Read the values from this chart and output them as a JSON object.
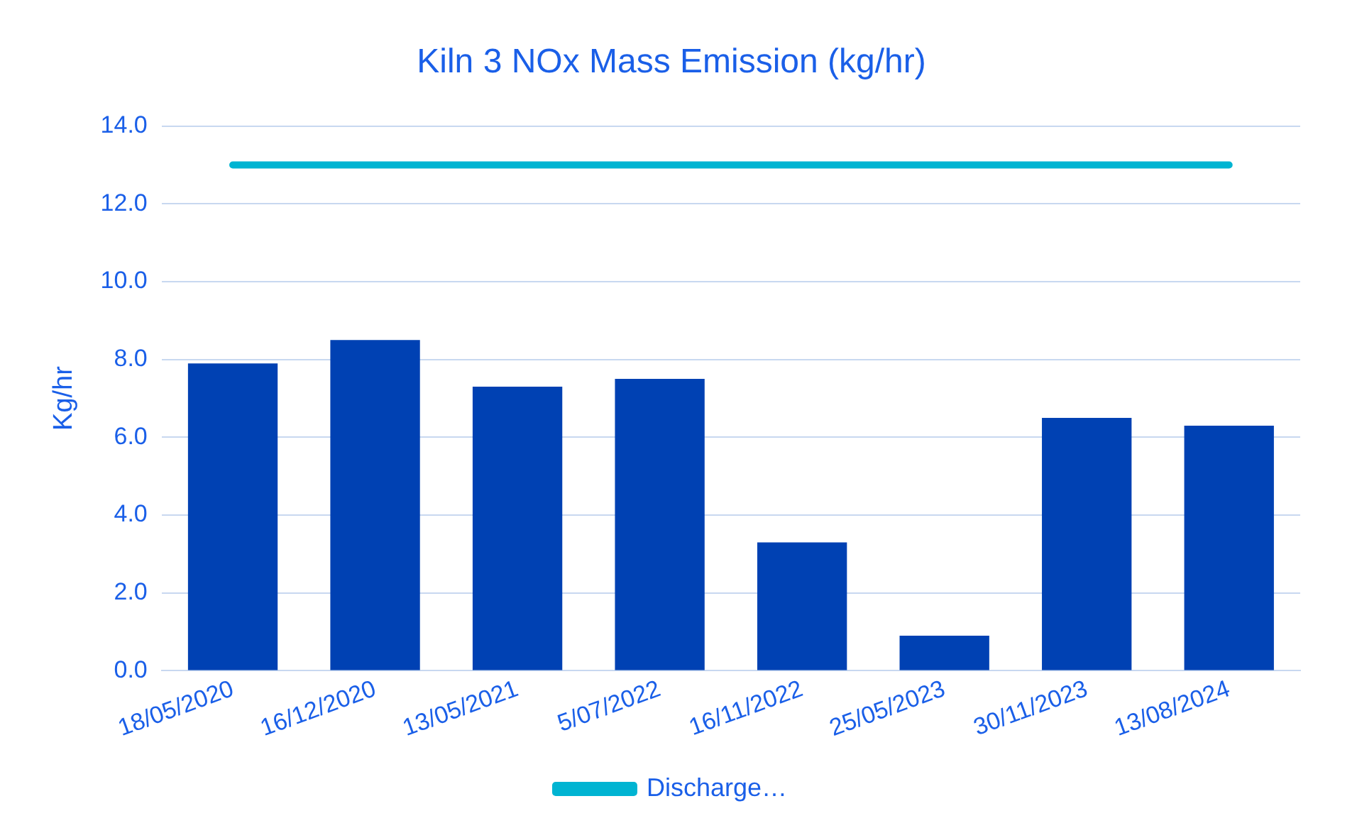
{
  "chart_data": {
    "type": "bar",
    "title": "Kiln 3 NOx Mass Emission (kg/hr)",
    "ylabel": "Kg/hr",
    "categories": [
      "18/05/2020",
      "16/12/2020",
      "13/05/2021",
      "5/07/2022",
      "16/11/2022",
      "25/05/2023",
      "30/11/2023",
      "13/08/2024"
    ],
    "series": [
      {
        "color": "#0041b3",
        "values": [
          7.9,
          8.5,
          7.3,
          7.5,
          3.3,
          0.9,
          6.5,
          6.3
        ]
      },
      {
        "type": "line",
        "name": "Discharge…",
        "color": "#00b4d2",
        "values": [
          13.0,
          13.0,
          13.0,
          13.0,
          13.0,
          13.0,
          13.0,
          13.0
        ]
      }
    ],
    "ylim": [
      0,
      14
    ],
    "yticks": [
      {
        "value": 0,
        "label": "0.0"
      },
      {
        "value": 2,
        "label": "2.0"
      },
      {
        "value": 4,
        "label": "4.0"
      },
      {
        "value": 6,
        "label": "6.0"
      },
      {
        "value": 8,
        "label": "8.0"
      },
      {
        "value": 10,
        "label": "10.0"
      },
      {
        "value": 12,
        "label": "12.0"
      },
      {
        "value": 14,
        "label": "14.0"
      }
    ],
    "grid": "y",
    "legend": "bottom",
    "marker": "none"
  }
}
